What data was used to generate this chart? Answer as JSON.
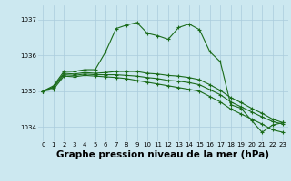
{
  "background_color": "#cce8f0",
  "grid_color": "#aaccdd",
  "line_color": "#1a6b1a",
  "title": "Graphe pression niveau de la mer (hPa)",
  "title_fontsize": 7.5,
  "tick_fontsize": 5,
  "xlim": [
    -0.5,
    23.5
  ],
  "ylim": [
    1033.6,
    1037.4
  ],
  "yticks": [
    1034,
    1035,
    1036,
    1037
  ],
  "xticks": [
    0,
    1,
    2,
    3,
    4,
    5,
    6,
    7,
    8,
    9,
    10,
    11,
    12,
    13,
    14,
    15,
    16,
    17,
    18,
    19,
    20,
    21,
    22,
    23
  ],
  "series1": [
    1035.0,
    1035.15,
    1035.55,
    1035.55,
    1035.6,
    1035.6,
    1036.1,
    1036.75,
    1036.85,
    1036.92,
    1036.62,
    1036.55,
    1036.45,
    1036.78,
    1036.88,
    1036.72,
    1036.1,
    1035.82,
    1034.62,
    1034.52,
    1034.18,
    1033.85,
    1034.05,
    1034.12
  ],
  "series2": [
    1035.0,
    1035.12,
    1035.5,
    1035.48,
    1035.52,
    1035.5,
    1035.52,
    1035.55,
    1035.55,
    1035.55,
    1035.5,
    1035.48,
    1035.44,
    1035.42,
    1035.38,
    1035.32,
    1035.18,
    1035.02,
    1034.82,
    1034.68,
    1034.52,
    1034.38,
    1034.22,
    1034.12
  ],
  "series3": [
    1035.0,
    1035.1,
    1035.46,
    1035.44,
    1035.48,
    1035.46,
    1035.46,
    1035.46,
    1035.44,
    1035.42,
    1035.38,
    1035.35,
    1035.3,
    1035.28,
    1035.24,
    1035.18,
    1035.04,
    1034.9,
    1034.7,
    1034.56,
    1034.42,
    1034.28,
    1034.15,
    1034.08
  ],
  "series4": [
    1035.0,
    1035.05,
    1035.42,
    1035.4,
    1035.44,
    1035.42,
    1035.4,
    1035.38,
    1035.35,
    1035.3,
    1035.25,
    1035.2,
    1035.15,
    1035.1,
    1035.05,
    1035.0,
    1034.85,
    1034.7,
    1034.5,
    1034.36,
    1034.22,
    1034.08,
    1033.92,
    1033.85
  ]
}
